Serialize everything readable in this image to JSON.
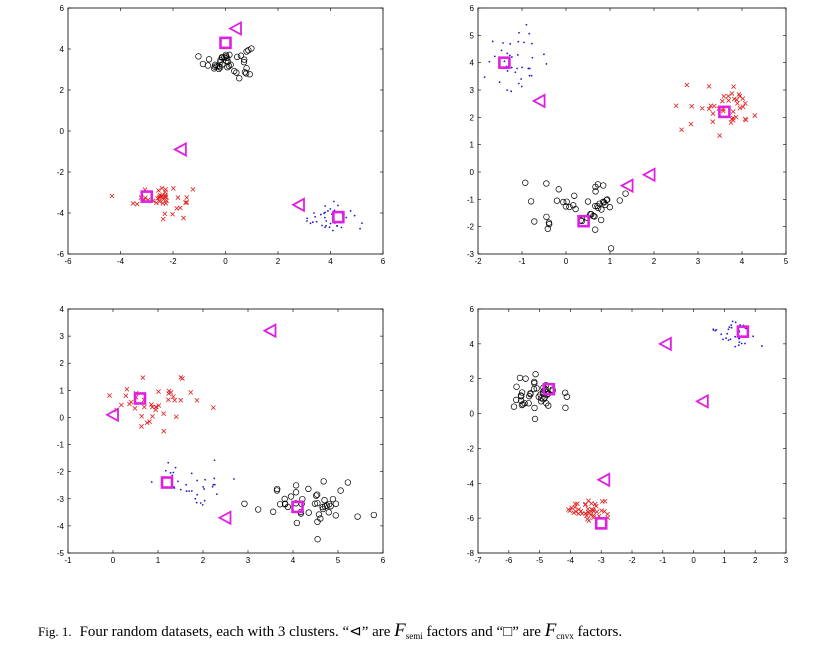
{
  "caption": {
    "fig_label": "Fig. 1.",
    "part1": "Four random datasets, each with 3 clusters. “",
    "tri_symbol": "⊲",
    "part2": "” are ",
    "F1": "F",
    "F1_sub": "semi",
    "part3": " factors and “",
    "sq_symbol": "□",
    "part4": "” are ",
    "F2": "F",
    "F2_sub": "cnvx",
    "part5": " factors."
  },
  "chart_data": [
    {
      "type": "scatter",
      "grid": false,
      "xlim": [
        -6,
        6
      ],
      "ylim": [
        -6,
        6
      ],
      "xticks": [
        -6,
        -4,
        -2,
        0,
        2,
        4,
        6
      ],
      "yticks": [
        -6,
        -4,
        -2,
        0,
        2,
        4,
        6
      ],
      "clusters": [
        {
          "marker": "circle",
          "color": "#000000",
          "cx": 0.1,
          "cy": 3.4,
          "sx": 0.45,
          "sy": 0.4,
          "n": 40
        },
        {
          "marker": "cross",
          "color": "#e02020",
          "cx": -2.4,
          "cy": -3.3,
          "sx": 0.55,
          "sy": 0.35,
          "n": 40
        },
        {
          "marker": "dot",
          "color": "#1a1acc",
          "cx": 3.9,
          "cy": -4.2,
          "sx": 0.5,
          "sy": 0.35,
          "n": 40
        }
      ],
      "tri_points": [
        [
          0.4,
          5.0
        ],
        [
          -1.7,
          -0.9
        ],
        [
          2.8,
          -3.6
        ]
      ],
      "sq_points": [
        [
          0.0,
          4.3
        ],
        [
          -3.0,
          -3.2
        ],
        [
          4.3,
          -4.2
        ]
      ]
    },
    {
      "type": "scatter",
      "grid": false,
      "xlim": [
        -2,
        5
      ],
      "ylim": [
        -3,
        6
      ],
      "xticks": [
        -2,
        -1,
        0,
        1,
        2,
        3,
        4,
        5
      ],
      "yticks": [
        -3,
        -2,
        -1,
        0,
        1,
        2,
        3,
        4,
        5,
        6
      ],
      "clusters": [
        {
          "marker": "dot",
          "color": "#1a1acc",
          "cx": -1.1,
          "cy": 4.1,
          "sx": 0.35,
          "sy": 0.55,
          "n": 40
        },
        {
          "marker": "cross",
          "color": "#e02020",
          "cx": 3.6,
          "cy": 2.3,
          "sx": 0.45,
          "sy": 0.4,
          "n": 40
        },
        {
          "marker": "circle",
          "color": "#000000",
          "cx": 0.4,
          "cy": -1.2,
          "sx": 0.5,
          "sy": 0.45,
          "n": 45
        }
      ],
      "tri_points": [
        [
          -0.6,
          2.6
        ],
        [
          1.4,
          -0.5
        ],
        [
          1.9,
          -0.1
        ]
      ],
      "sq_points": [
        [
          -1.4,
          4.0
        ],
        [
          0.4,
          -1.8
        ],
        [
          3.6,
          2.2
        ]
      ]
    },
    {
      "type": "scatter",
      "grid": false,
      "xlim": [
        -1,
        6
      ],
      "ylim": [
        -5,
        4
      ],
      "xticks": [
        -1,
        0,
        1,
        2,
        3,
        4,
        5,
        6
      ],
      "yticks": [
        -5,
        -4,
        -3,
        -2,
        -1,
        0,
        1,
        2,
        3,
        4
      ],
      "clusters": [
        {
          "marker": "cross",
          "color": "#e02020",
          "cx": 1.0,
          "cy": 0.6,
          "sx": 0.55,
          "sy": 0.45,
          "n": 40
        },
        {
          "marker": "dot",
          "color": "#1a1acc",
          "cx": 1.8,
          "cy": -2.5,
          "sx": 0.4,
          "sy": 0.45,
          "n": 35
        },
        {
          "marker": "circle",
          "color": "#000000",
          "cx": 4.4,
          "cy": -3.2,
          "sx": 0.55,
          "sy": 0.4,
          "n": 45
        }
      ],
      "tri_points": [
        [
          3.5,
          3.2
        ],
        [
          0.0,
          0.1
        ],
        [
          2.5,
          -3.7
        ]
      ],
      "sq_points": [
        [
          0.6,
          0.7
        ],
        [
          1.2,
          -2.4
        ],
        [
          4.1,
          -3.3
        ]
      ]
    },
    {
      "type": "scatter",
      "grid": false,
      "xlim": [
        -7,
        3
      ],
      "ylim": [
        -8,
        6
      ],
      "xticks": [
        -7,
        -6,
        -5,
        -4,
        -3,
        -2,
        -1,
        0,
        1,
        2,
        3
      ],
      "yticks": [
        -8,
        -6,
        -4,
        -2,
        0,
        2,
        4,
        6
      ],
      "clusters": [
        {
          "marker": "circle",
          "color": "#000000",
          "cx": -5.1,
          "cy": 1.1,
          "sx": 0.4,
          "sy": 0.55,
          "n": 45
        },
        {
          "marker": "cross",
          "color": "#e02020",
          "cx": -3.3,
          "cy": -5.6,
          "sx": 0.35,
          "sy": 0.35,
          "n": 40
        },
        {
          "marker": "dot",
          "color": "#1a1acc",
          "cx": 1.2,
          "cy": 4.5,
          "sx": 0.45,
          "sy": 0.45,
          "n": 35
        }
      ],
      "tri_points": [
        [
          -0.9,
          4.0
        ],
        [
          0.3,
          0.7
        ],
        [
          -2.9,
          -3.8
        ]
      ],
      "sq_points": [
        [
          -4.7,
          1.4
        ],
        [
          -3.0,
          -6.3
        ],
        [
          1.6,
          4.7
        ]
      ]
    }
  ]
}
